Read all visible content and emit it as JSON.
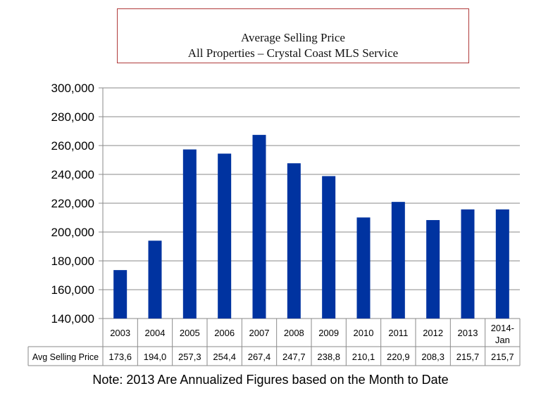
{
  "chart_data": {
    "type": "bar",
    "title": "Average Selling Price",
    "subtitle": "All Properties – Crystal Coast MLS Service",
    "categories": [
      "2003",
      "2004",
      "2005",
      "2006",
      "2007",
      "2008",
      "2009",
      "2010",
      "2011",
      "2012",
      "2013",
      "2014-Jan"
    ],
    "series": [
      {
        "name": "Avg Selling Price",
        "values": [
          173600,
          194000,
          257300,
          254400,
          267400,
          247700,
          238800,
          210100,
          220900,
          208300,
          215700,
          215700
        ],
        "table_labels": [
          "173,6",
          "194,0",
          "257,3",
          "254,4",
          "267,4",
          "247,7",
          "238,8",
          "210,1",
          "220,9",
          "208,3",
          "215,7",
          "215,7"
        ]
      }
    ],
    "ylim": [
      140000,
      300000
    ],
    "yticks": [
      "140,000",
      "160,000",
      "180,000",
      "200,000",
      "220,000",
      "240,000",
      "260,000",
      "280,000",
      "300,000"
    ],
    "ytick_values": [
      140000,
      160000,
      180000,
      200000,
      220000,
      240000,
      260000,
      280000,
      300000
    ],
    "grid": true,
    "legend": "none",
    "bar_color": "#0033a0",
    "data_table": true
  },
  "note": "Note:  2013 Are Annualized Figures based on the Month to Date"
}
